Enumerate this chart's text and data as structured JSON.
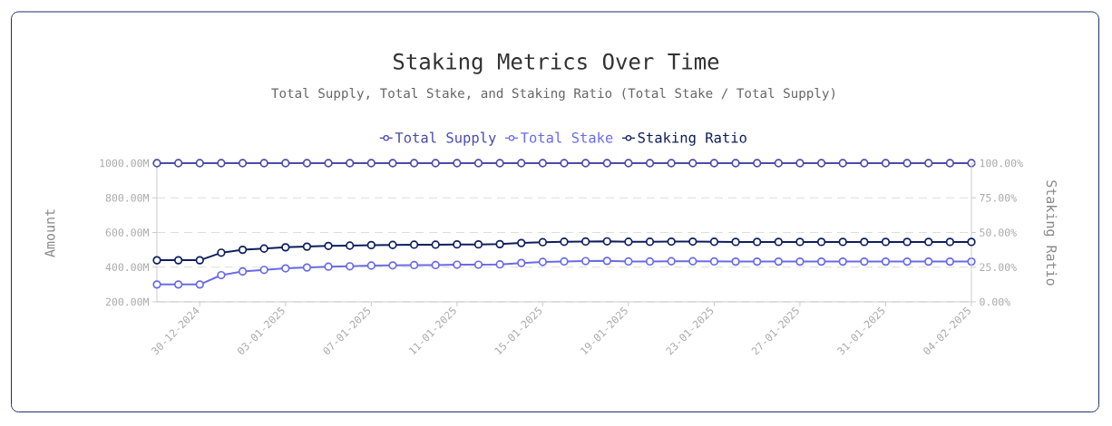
{
  "chart_data": {
    "type": "line",
    "title": "Staking Metrics Over Time",
    "subtitle": "Total Supply, Total Stake, and Staking Ratio (Total Stake / Total Supply)",
    "ylabel": "Amount",
    "y2label": "Staking Ratio",
    "x": [
      "2024-12-28",
      "2024-12-29",
      "2024-12-30",
      "2024-12-31",
      "2025-01-01",
      "2025-01-02",
      "2025-01-03",
      "2025-01-04",
      "2025-01-05",
      "2025-01-06",
      "2025-01-07",
      "2025-01-08",
      "2025-01-09",
      "2025-01-10",
      "2025-01-11",
      "2025-01-12",
      "2025-01-13",
      "2025-01-14",
      "2025-01-15",
      "2025-01-16",
      "2025-01-17",
      "2025-01-18",
      "2025-01-19",
      "2025-01-20",
      "2025-01-21",
      "2025-01-22",
      "2025-01-23",
      "2025-01-24",
      "2025-01-25",
      "2025-01-26",
      "2025-01-27",
      "2025-01-28",
      "2025-01-29",
      "2025-01-30",
      "2025-01-31",
      "2025-02-01",
      "2025-02-02",
      "2025-02-03",
      "2025-02-04"
    ],
    "series": [
      {
        "name": "Total Supply",
        "color": "#4b4ba8",
        "values": [
          1000,
          1000,
          1000,
          1000,
          1000,
          1000,
          1000,
          1000,
          1000,
          1000,
          1000,
          1000,
          1000,
          1000,
          1000,
          1000,
          1000,
          1000,
          1000,
          1000,
          1000,
          1000,
          1000,
          1000,
          1000,
          1000,
          1000,
          1000,
          1000,
          1000,
          1000,
          1000,
          1000,
          1000,
          1000,
          1000,
          1000,
          1000,
          1000
        ]
      },
      {
        "name": "Total Stake",
        "color": "#6b6be6",
        "values": [
          300,
          300,
          300,
          354,
          375,
          384,
          393,
          398,
          403,
          405,
          409,
          410,
          412,
          412,
          414,
          414,
          416,
          424,
          430,
          433,
          435,
          436,
          433,
          433,
          434,
          434,
          433,
          432,
          432,
          432,
          432,
          432,
          432,
          432,
          432,
          432,
          432,
          432,
          432
        ]
      },
      {
        "name": "Staking Ratio",
        "color": "#0f1f5c",
        "axis": "y2",
        "values": [
          30,
          30,
          30,
          35.4,
          37.5,
          38.4,
          39.3,
          39.8,
          40.3,
          40.5,
          40.9,
          41,
          41.2,
          41.2,
          41.4,
          41.4,
          41.6,
          42.4,
          43,
          43.3,
          43.5,
          43.6,
          43.3,
          43.3,
          43.4,
          43.4,
          43.3,
          43.2,
          43.2,
          43.2,
          43.2,
          43.2,
          43.2,
          43.2,
          43.2,
          43.2,
          43.2,
          43.2,
          43.2
        ]
      }
    ],
    "xlim": [
      "2024-12-28",
      "2025-02-04"
    ],
    "xticks": [
      {
        "value": "2024-12-30",
        "label": "30-12-2024"
      },
      {
        "value": "2025-01-03",
        "label": "03-01-2025"
      },
      {
        "value": "2025-01-07",
        "label": "07-01-2025"
      },
      {
        "value": "2025-01-11",
        "label": "11-01-2025"
      },
      {
        "value": "2025-01-15",
        "label": "15-01-2025"
      },
      {
        "value": "2025-01-19",
        "label": "19-01-2025"
      },
      {
        "value": "2025-01-23",
        "label": "23-01-2025"
      },
      {
        "value": "2025-01-27",
        "label": "27-01-2025"
      },
      {
        "value": "2025-01-31",
        "label": "31-01-2025"
      },
      {
        "value": "2025-02-04",
        "label": "04-02-2025"
      }
    ],
    "ylim": [
      200,
      1000
    ],
    "yticks": [
      {
        "value": 200,
        "label": "200.00M"
      },
      {
        "value": 400,
        "label": "400.00M"
      },
      {
        "value": 600,
        "label": "600.00M"
      },
      {
        "value": 800,
        "label": "800.00M"
      },
      {
        "value": 1000,
        "label": "1000.00M"
      }
    ],
    "y2lim": [
      0,
      100
    ],
    "y2ticks": [
      {
        "value": 0,
        "label": "0.00%"
      },
      {
        "value": 25,
        "label": "25.00%"
      },
      {
        "value": 50,
        "label": "50.00%"
      },
      {
        "value": 75,
        "label": "75.00%"
      },
      {
        "value": 100,
        "label": "100.00%"
      }
    ],
    "grid": "y",
    "legend": "top",
    "marker": "circle",
    "line_style": "solid"
  }
}
